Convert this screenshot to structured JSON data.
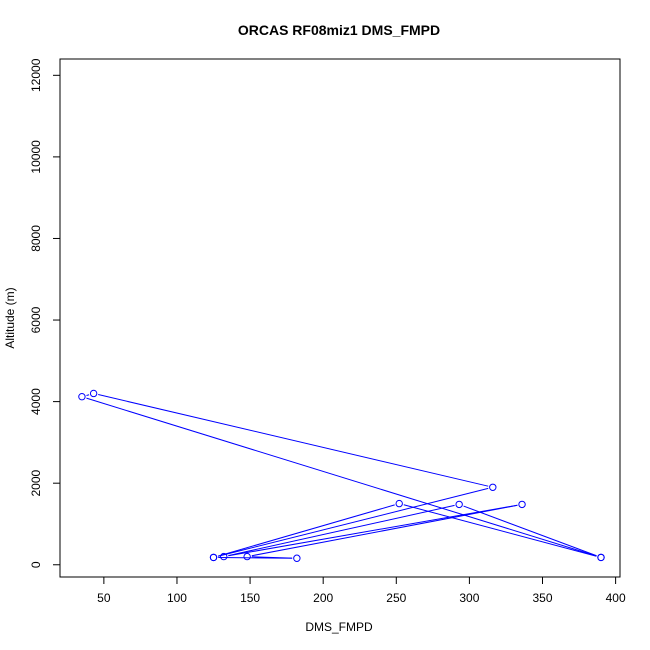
{
  "chart_data": {
    "type": "line",
    "title": "ORCAS RF08miz1 DMS_FMPD",
    "xlabel": "DMS_FMPD",
    "ylabel": "Altitude (m)",
    "xlim": [
      20,
      403
    ],
    "ylim": [
      -300,
      12400
    ],
    "x_ticks": [
      50,
      100,
      150,
      200,
      250,
      300,
      350,
      400
    ],
    "y_ticks": [
      0,
      2000,
      4000,
      6000,
      8000,
      10000,
      12000
    ],
    "grid": false,
    "series": [
      {
        "color": "#0000ff",
        "marker": "open-circle",
        "x": [
          390,
          35,
          43,
          316,
          125,
          252,
          390,
          293,
          132,
          336,
          148,
          182,
          125
        ],
        "y": [
          180,
          4120,
          4200,
          1900,
          180,
          1500,
          180,
          1480,
          200,
          1480,
          200,
          160,
          180
        ]
      }
    ]
  }
}
